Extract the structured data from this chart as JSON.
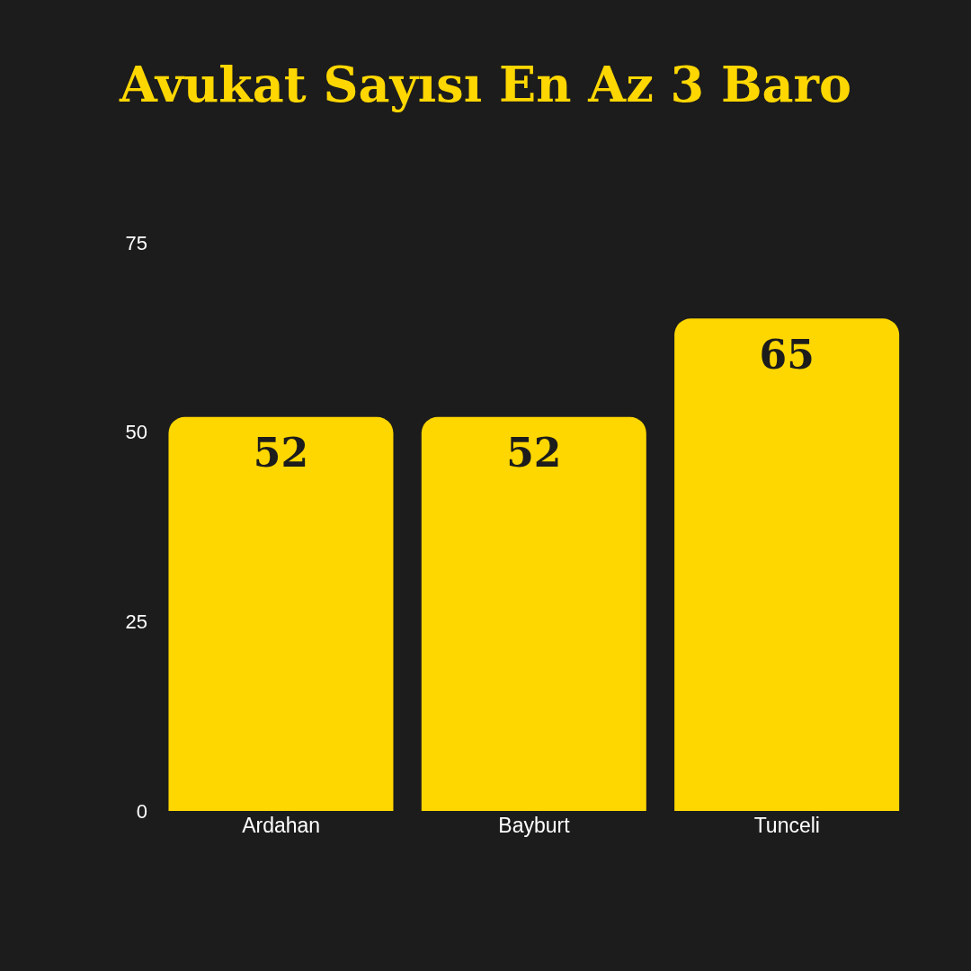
{
  "chart_data": {
    "type": "bar",
    "title": "Avukat Sayısı En Az 3 Baro",
    "categories": [
      "Ardahan",
      "Bayburt",
      "Tunceli"
    ],
    "values": [
      52,
      52,
      65
    ],
    "color": "#ffd700",
    "ylim": [
      0,
      75
    ],
    "yticks": [
      0,
      25,
      50,
      75
    ],
    "data_labels": true
  }
}
